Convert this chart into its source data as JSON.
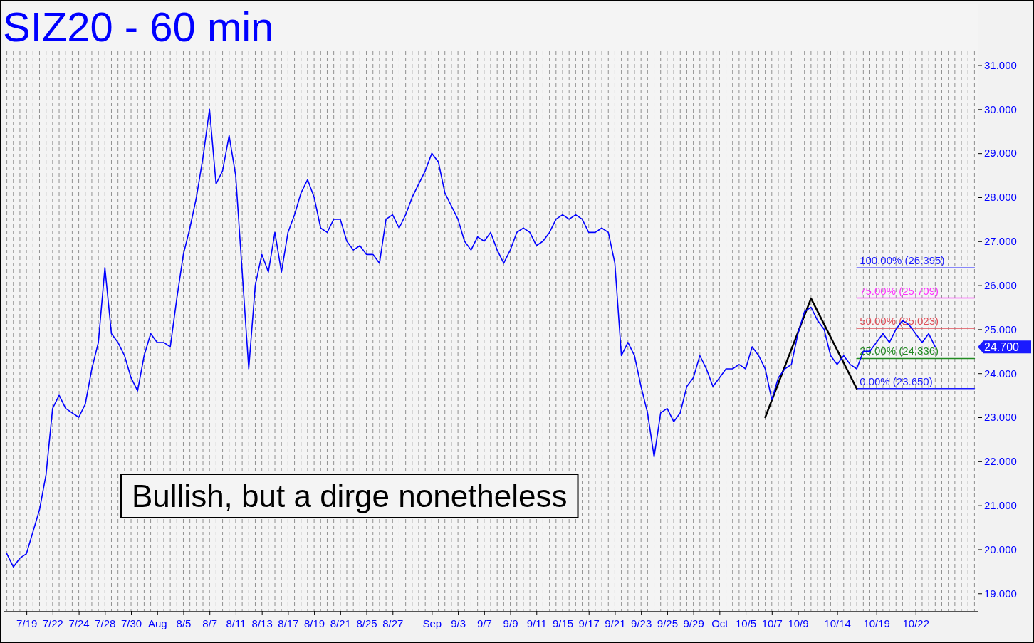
{
  "chart_data": {
    "type": "line",
    "title": "SIZ20 - 60 min",
    "categories": [
      null,
      null,
      null,
      "7/19",
      null,
      null,
      null,
      "7/22",
      null,
      null,
      null,
      "7/24",
      null,
      null,
      null,
      "7/28",
      null,
      null,
      null,
      "7/30",
      null,
      null,
      null,
      "Aug",
      null,
      null,
      null,
      "8/5",
      null,
      null,
      null,
      "8/7",
      null,
      null,
      null,
      "8/11",
      null,
      null,
      null,
      "8/13",
      null,
      null,
      null,
      "8/17",
      null,
      null,
      null,
      "8/19",
      null,
      null,
      null,
      "8/21",
      null,
      null,
      null,
      "8/25",
      null,
      null,
      null,
      "8/27",
      null,
      null,
      null,
      null,
      null,
      "Sep",
      null,
      null,
      null,
      "9/3",
      null,
      null,
      null,
      "9/7",
      null,
      null,
      null,
      "9/9",
      null,
      null,
      null,
      "9/11",
      null,
      null,
      null,
      "9/15",
      null,
      null,
      null,
      "9/17",
      null,
      null,
      null,
      "9/21",
      null,
      null,
      null,
      "9/23",
      null,
      null,
      null,
      "9/25",
      null,
      null,
      null,
      "9/29",
      null,
      null,
      null,
      "Oct",
      null,
      null,
      null,
      "10/5",
      null,
      null,
      null,
      "10/7",
      null,
      null,
      null,
      "10/9",
      null,
      null,
      null,
      null,
      null,
      "10/14",
      null,
      null,
      null,
      null,
      null,
      "10/19",
      null,
      null,
      null,
      null,
      null,
      "10/22",
      null,
      null,
      null,
      null,
      null,
      null,
      null,
      null,
      null
    ],
    "series": [
      {
        "color": "#0000ff",
        "values": [
          19.9,
          19.6,
          19.8,
          19.9,
          20.4,
          20.9,
          21.7,
          23.2,
          23.5,
          23.2,
          23.1,
          23.0,
          23.3,
          24.1,
          24.7,
          26.4,
          24.9,
          24.7,
          24.4,
          23.9,
          23.6,
          24.4,
          24.9,
          24.7,
          24.7,
          24.6,
          25.7,
          26.7,
          27.3,
          28.0,
          28.9,
          30.0,
          28.3,
          28.6,
          29.4,
          28.5,
          26.3,
          24.1,
          26.0,
          26.7,
          26.3,
          27.2,
          26.3,
          27.2,
          27.6,
          28.1,
          28.4,
          28.0,
          27.3,
          27.2,
          27.5,
          27.5,
          27.0,
          26.8,
          26.9,
          26.7,
          26.7,
          26.5,
          27.5,
          27.6,
          27.3,
          27.6,
          28.0,
          28.3,
          28.6,
          29.0,
          28.8,
          28.1,
          27.8,
          27.5,
          27.0,
          26.8,
          27.1,
          27.0,
          27.2,
          26.8,
          26.5,
          26.8,
          27.2,
          27.3,
          27.2,
          26.9,
          27.0,
          27.2,
          27.5,
          27.6,
          27.5,
          27.6,
          27.5,
          27.2,
          27.2,
          27.3,
          27.2,
          26.5,
          24.4,
          24.7,
          24.4,
          23.7,
          23.1,
          22.1,
          23.1,
          23.2,
          22.9,
          23.1,
          23.7,
          23.9,
          24.4,
          24.1,
          23.7,
          23.9,
          24.1,
          24.1,
          24.2,
          24.1,
          24.6,
          24.4,
          24.1,
          23.4,
          23.9,
          24.1,
          24.2,
          24.9,
          25.4,
          25.5,
          25.2,
          25.0,
          24.4,
          24.2,
          24.4,
          24.2,
          24.1,
          24.5,
          24.5,
          24.7,
          24.9,
          24.7,
          25.0,
          25.2,
          25.1,
          24.9,
          24.7,
          24.9,
          24.6,
          null,
          null,
          null,
          null,
          null,
          null
        ]
      },
      {
        "color": "#000000",
        "values": [
          null,
          null,
          null,
          null,
          null,
          null,
          null,
          null,
          null,
          null,
          null,
          null,
          null,
          null,
          null,
          null,
          null,
          null,
          null,
          null,
          null,
          null,
          null,
          null,
          null,
          null,
          null,
          null,
          null,
          null,
          null,
          null,
          null,
          null,
          null,
          null,
          null,
          null,
          null,
          null,
          null,
          null,
          null,
          null,
          null,
          null,
          null,
          null,
          null,
          null,
          null,
          null,
          null,
          null,
          null,
          null,
          null,
          null,
          null,
          null,
          null,
          null,
          null,
          null,
          null,
          null,
          null,
          null,
          null,
          null,
          null,
          null,
          null,
          null,
          null,
          null,
          null,
          null,
          null,
          null,
          null,
          null,
          null,
          null,
          null,
          null,
          null,
          null,
          null,
          null,
          null,
          null,
          null,
          null,
          null,
          null,
          null,
          null,
          null,
          null,
          null,
          null,
          null,
          null,
          null,
          null,
          null,
          null,
          null,
          null,
          null,
          null,
          null,
          null,
          null,
          null,
          23.0,
          null,
          null,
          null,
          null,
          null,
          null,
          25.7,
          null,
          null,
          null,
          null,
          null,
          null,
          23.65,
          null,
          null,
          null,
          null,
          null,
          null,
          null,
          null,
          null,
          null,
          null,
          null,
          null,
          null,
          null,
          null,
          null,
          null
        ]
      },
      {
        "name": "100.00% (26.395)",
        "color": "#1a1aff",
        "values": [
          null,
          null,
          null,
          null,
          null,
          null,
          null,
          null,
          null,
          null,
          null,
          null,
          null,
          null,
          null,
          null,
          null,
          null,
          null,
          null,
          null,
          null,
          null,
          null,
          null,
          null,
          null,
          null,
          null,
          null,
          null,
          null,
          null,
          null,
          null,
          null,
          null,
          null,
          null,
          null,
          null,
          null,
          null,
          null,
          null,
          null,
          null,
          null,
          null,
          null,
          null,
          null,
          null,
          null,
          null,
          null,
          null,
          null,
          null,
          null,
          null,
          null,
          null,
          null,
          null,
          null,
          null,
          null,
          null,
          null,
          null,
          null,
          null,
          null,
          null,
          null,
          null,
          null,
          null,
          null,
          null,
          null,
          null,
          null,
          null,
          null,
          null,
          null,
          null,
          null,
          null,
          null,
          null,
          null,
          null,
          null,
          null,
          null,
          null,
          null,
          null,
          null,
          null,
          null,
          null,
          null,
          null,
          null,
          null,
          null,
          null,
          null,
          null,
          null,
          null,
          null,
          null,
          null,
          null,
          null,
          null,
          null,
          null,
          null,
          null,
          null,
          null,
          null,
          null,
          null,
          26.395,
          26.395,
          26.395,
          26.395,
          26.395,
          26.395,
          26.395,
          26.395,
          26.395,
          26.395,
          26.395,
          26.395,
          26.395,
          26.395,
          26.395,
          26.395,
          26.395,
          26.395,
          26.395
        ]
      },
      {
        "name": "75.00% (25.709)",
        "color": "#ff33ff",
        "values": [
          null,
          null,
          null,
          null,
          null,
          null,
          null,
          null,
          null,
          null,
          null,
          null,
          null,
          null,
          null,
          null,
          null,
          null,
          null,
          null,
          null,
          null,
          null,
          null,
          null,
          null,
          null,
          null,
          null,
          null,
          null,
          null,
          null,
          null,
          null,
          null,
          null,
          null,
          null,
          null,
          null,
          null,
          null,
          null,
          null,
          null,
          null,
          null,
          null,
          null,
          null,
          null,
          null,
          null,
          null,
          null,
          null,
          null,
          null,
          null,
          null,
          null,
          null,
          null,
          null,
          null,
          null,
          null,
          null,
          null,
          null,
          null,
          null,
          null,
          null,
          null,
          null,
          null,
          null,
          null,
          null,
          null,
          null,
          null,
          null,
          null,
          null,
          null,
          null,
          null,
          null,
          null,
          null,
          null,
          null,
          null,
          null,
          null,
          null,
          null,
          null,
          null,
          null,
          null,
          null,
          null,
          null,
          null,
          null,
          null,
          null,
          null,
          null,
          null,
          null,
          null,
          null,
          null,
          null,
          null,
          null,
          null,
          null,
          null,
          null,
          null,
          null,
          null,
          null,
          null,
          25.709,
          25.709,
          25.709,
          25.709,
          25.709,
          25.709,
          25.709,
          25.709,
          25.709,
          25.709,
          25.709,
          25.709,
          25.709,
          25.709,
          25.709,
          25.709,
          25.709,
          25.709,
          25.709
        ]
      },
      {
        "name": "50.00% (25.023)",
        "color": "#e0505a",
        "values": [
          null,
          null,
          null,
          null,
          null,
          null,
          null,
          null,
          null,
          null,
          null,
          null,
          null,
          null,
          null,
          null,
          null,
          null,
          null,
          null,
          null,
          null,
          null,
          null,
          null,
          null,
          null,
          null,
          null,
          null,
          null,
          null,
          null,
          null,
          null,
          null,
          null,
          null,
          null,
          null,
          null,
          null,
          null,
          null,
          null,
          null,
          null,
          null,
          null,
          null,
          null,
          null,
          null,
          null,
          null,
          null,
          null,
          null,
          null,
          null,
          null,
          null,
          null,
          null,
          null,
          null,
          null,
          null,
          null,
          null,
          null,
          null,
          null,
          null,
          null,
          null,
          null,
          null,
          null,
          null,
          null,
          null,
          null,
          null,
          null,
          null,
          null,
          null,
          null,
          null,
          null,
          null,
          null,
          null,
          null,
          null,
          null,
          null,
          null,
          null,
          null,
          null,
          null,
          null,
          null,
          null,
          null,
          null,
          null,
          null,
          null,
          null,
          null,
          null,
          null,
          null,
          null,
          null,
          null,
          null,
          null,
          null,
          null,
          null,
          null,
          null,
          null,
          null,
          null,
          null,
          25.023,
          25.023,
          25.023,
          25.023,
          25.023,
          25.023,
          25.023,
          25.023,
          25.023,
          25.023,
          25.023,
          25.023,
          25.023,
          25.023,
          25.023,
          25.023,
          25.023,
          25.023,
          25.023
        ]
      },
      {
        "name": "25.00% (24.336)",
        "color": "#228b22",
        "values": [
          null,
          null,
          null,
          null,
          null,
          null,
          null,
          null,
          null,
          null,
          null,
          null,
          null,
          null,
          null,
          null,
          null,
          null,
          null,
          null,
          null,
          null,
          null,
          null,
          null,
          null,
          null,
          null,
          null,
          null,
          null,
          null,
          null,
          null,
          null,
          null,
          null,
          null,
          null,
          null,
          null,
          null,
          null,
          null,
          null,
          null,
          null,
          null,
          null,
          null,
          null,
          null,
          null,
          null,
          null,
          null,
          null,
          null,
          null,
          null,
          null,
          null,
          null,
          null,
          null,
          null,
          null,
          null,
          null,
          null,
          null,
          null,
          null,
          null,
          null,
          null,
          null,
          null,
          null,
          null,
          null,
          null,
          null,
          null,
          null,
          null,
          null,
          null,
          null,
          null,
          null,
          null,
          null,
          null,
          null,
          null,
          null,
          null,
          null,
          null,
          null,
          null,
          null,
          null,
          null,
          null,
          null,
          null,
          null,
          null,
          null,
          null,
          null,
          null,
          null,
          null,
          null,
          null,
          null,
          null,
          null,
          null,
          null,
          null,
          null,
          null,
          null,
          null,
          null,
          null,
          24.336,
          24.336,
          24.336,
          24.336,
          24.336,
          24.336,
          24.336,
          24.336,
          24.336,
          24.336,
          24.336,
          24.336,
          24.336,
          24.336,
          24.336,
          24.336,
          24.336,
          24.336,
          24.336
        ]
      },
      {
        "name": "0.00% (23.650)",
        "color": "#1a1aff",
        "values": [
          null,
          null,
          null,
          null,
          null,
          null,
          null,
          null,
          null,
          null,
          null,
          null,
          null,
          null,
          null,
          null,
          null,
          null,
          null,
          null,
          null,
          null,
          null,
          null,
          null,
          null,
          null,
          null,
          null,
          null,
          null,
          null,
          null,
          null,
          null,
          null,
          null,
          null,
          null,
          null,
          null,
          null,
          null,
          null,
          null,
          null,
          null,
          null,
          null,
          null,
          null,
          null,
          null,
          null,
          null,
          null,
          null,
          null,
          null,
          null,
          null,
          null,
          null,
          null,
          null,
          null,
          null,
          null,
          null,
          null,
          null,
          null,
          null,
          null,
          null,
          null,
          null,
          null,
          null,
          null,
          null,
          null,
          null,
          null,
          null,
          null,
          null,
          null,
          null,
          null,
          null,
          null,
          null,
          null,
          null,
          null,
          null,
          null,
          null,
          null,
          null,
          null,
          null,
          null,
          null,
          null,
          null,
          null,
          null,
          null,
          null,
          null,
          null,
          null,
          null,
          null,
          null,
          null,
          null,
          null,
          null,
          null,
          null,
          null,
          null,
          null,
          null,
          null,
          null,
          null,
          23.65,
          23.65,
          23.65,
          23.65,
          23.65,
          23.65,
          23.65,
          23.65,
          23.65,
          23.65,
          23.65,
          23.65,
          23.65,
          23.65,
          23.65,
          23.65,
          23.65,
          23.65,
          23.65
        ]
      }
    ],
    "ylim": [
      18.6,
      32.4
    ],
    "yticks": [
      {
        "value": 19,
        "label": "19.000"
      },
      {
        "value": 20,
        "label": "20.000"
      },
      {
        "value": 21,
        "label": "21.000"
      },
      {
        "value": 22,
        "label": "22.000"
      },
      {
        "value": 23,
        "label": "23.000"
      },
      {
        "value": 24,
        "label": "24.000"
      },
      {
        "value": 25,
        "label": "25.000"
      },
      {
        "value": 26,
        "label": "26.000"
      },
      {
        "value": 27,
        "label": "27.000"
      },
      {
        "value": 28,
        "label": "28.000"
      },
      {
        "value": 29,
        "label": "29.000"
      },
      {
        "value": 30,
        "label": "30.000"
      },
      {
        "value": 31,
        "label": "31.000"
      }
    ],
    "annotations": [
      "Bullish, but a dirge nonetheless",
      "24.700"
    ],
    "grid": "x",
    "legend": false
  }
}
